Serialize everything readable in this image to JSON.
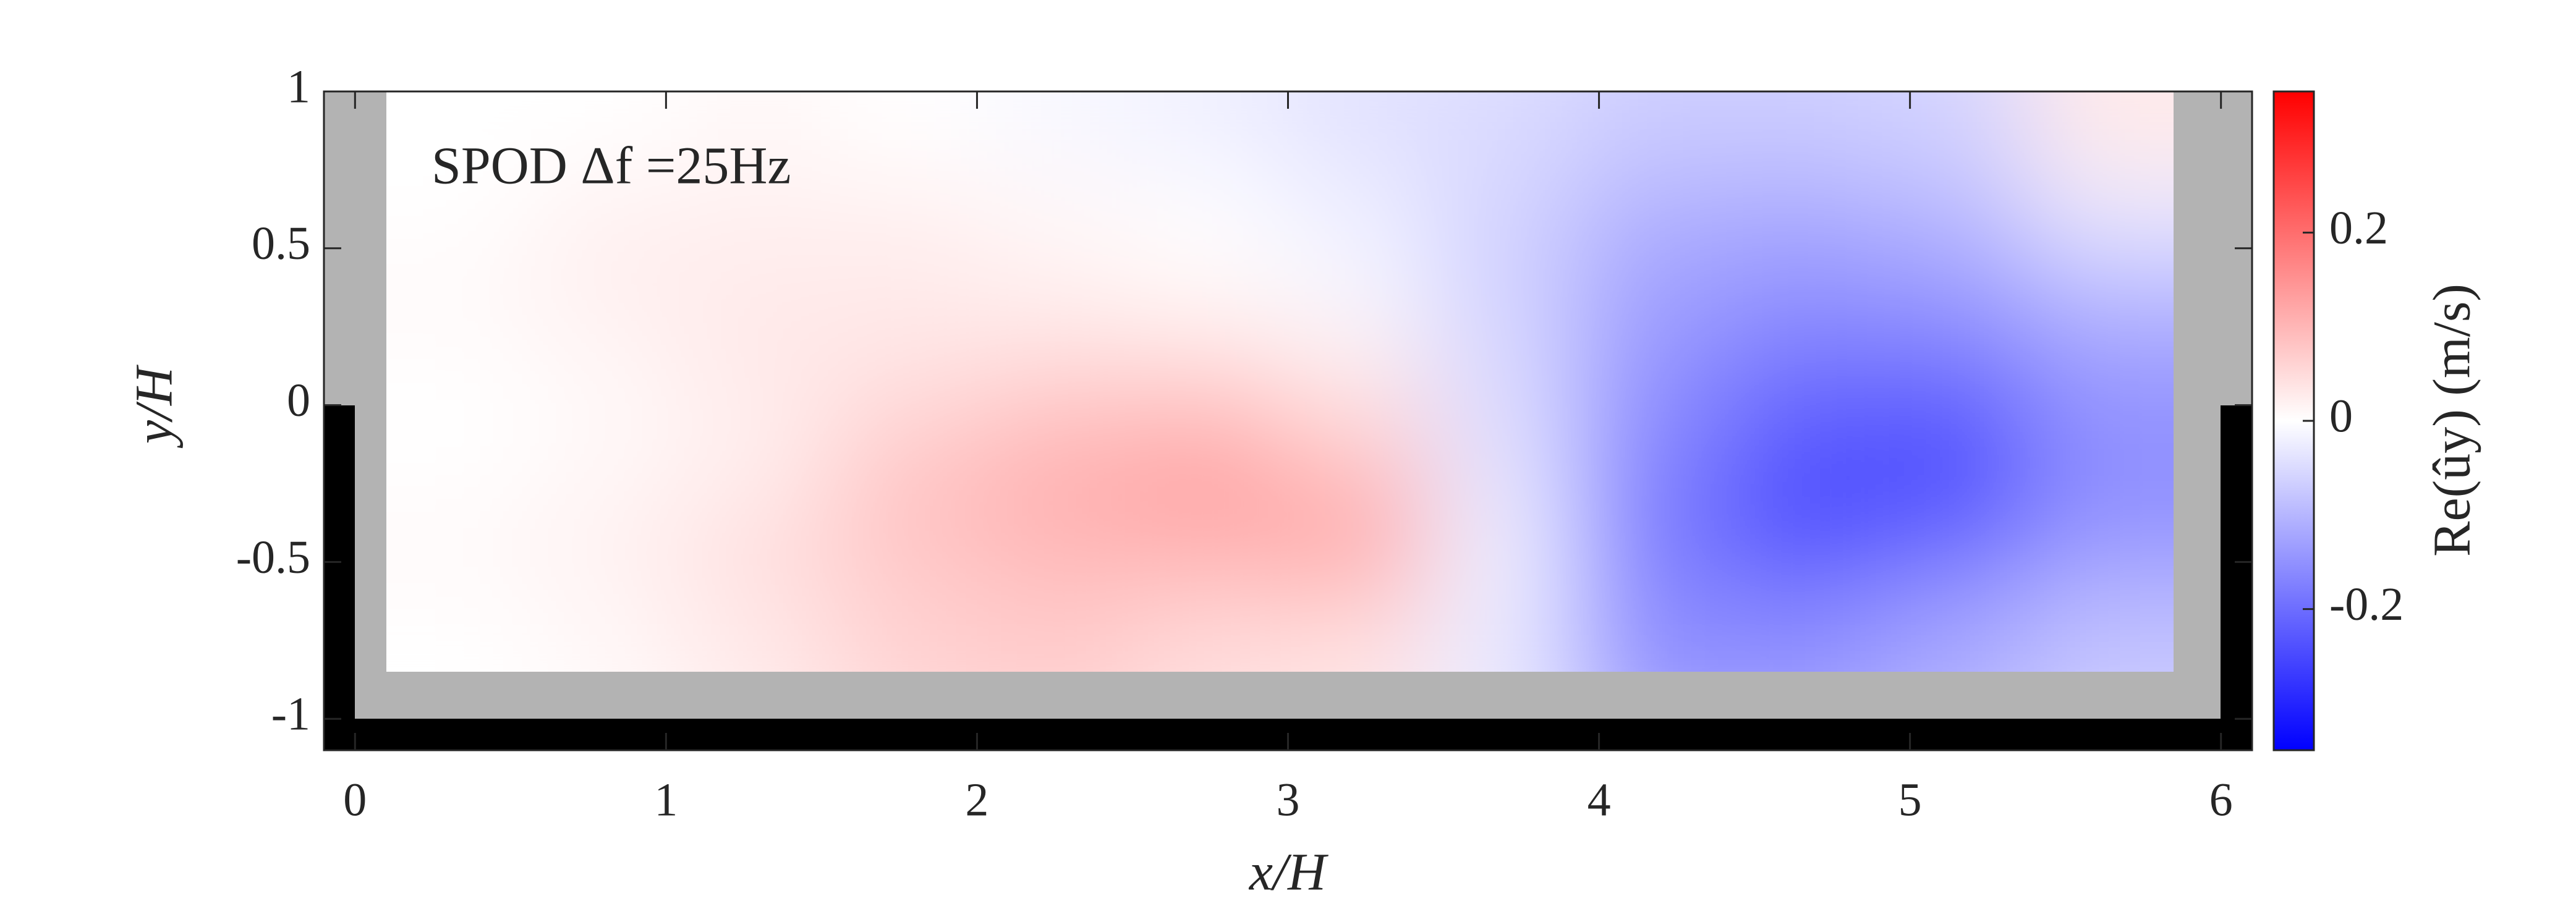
{
  "chart_data": {
    "type": "contour",
    "annotation": "SPOD Δf =25Hz",
    "xlabel": "x/H",
    "ylabel": "y/H",
    "colorbar_label": "Re(ûy) (m/s)",
    "xlim": [
      -0.1,
      6.1
    ],
    "ylim": [
      -1.1,
      1
    ],
    "xticks": [
      0,
      1,
      2,
      3,
      4,
      5,
      6
    ],
    "yticks": [
      -1,
      -0.5,
      0,
      0.5,
      1
    ],
    "clim": [
      -0.35,
      0.35
    ],
    "cticks": [
      -0.2,
      0,
      0.2
    ],
    "colormap": [
      "#0000ff",
      "#ffffff",
      "#ff0000"
    ],
    "x": [
      0.34,
      0.82,
      1.3,
      1.78,
      2.26,
      2.74,
      3.21,
      3.69,
      4.17,
      4.65,
      5.13,
      5.61
    ],
    "y": [
      -0.72,
      -0.45,
      -0.19,
      0.08,
      0.34,
      0.6,
      0.87
    ],
    "z": [
      [
        0,
        0.01,
        0.03,
        0.06,
        0.07,
        0.05,
        0.04,
        -0.03,
        -0.15,
        -0.15,
        -0.12,
        -0.08
      ],
      [
        0.01,
        0.02,
        0.05,
        0.08,
        0.1,
        0.11,
        0.13,
        -0.02,
        -0.18,
        -0.24,
        -0.2,
        -0.14
      ],
      [
        0,
        0.01,
        0.02,
        0.08,
        0.11,
        0.13,
        0.08,
        -0.04,
        -0.17,
        -0.24,
        -0.26,
        -0.16
      ],
      [
        0,
        0.01,
        0.03,
        0.04,
        0.06,
        0.06,
        0.03,
        -0.05,
        -0.15,
        -0.2,
        -0.2,
        -0.14
      ],
      [
        0.01,
        0.02,
        0.03,
        0.03,
        0.02,
        0.01,
        -0.01,
        -0.06,
        -0.13,
        -0.15,
        -0.14,
        -0.1
      ],
      [
        0,
        0.02,
        0.02,
        0.02,
        0.01,
        0,
        -0.02,
        -0.06,
        -0.11,
        -0.12,
        -0.1,
        -0.03
      ],
      [
        0,
        0,
        0.01,
        0,
        -0.01,
        -0.02,
        -0.04,
        -0.05,
        -0.07,
        -0.07,
        -0.06,
        0.03
      ]
    ],
    "grid": false
  }
}
